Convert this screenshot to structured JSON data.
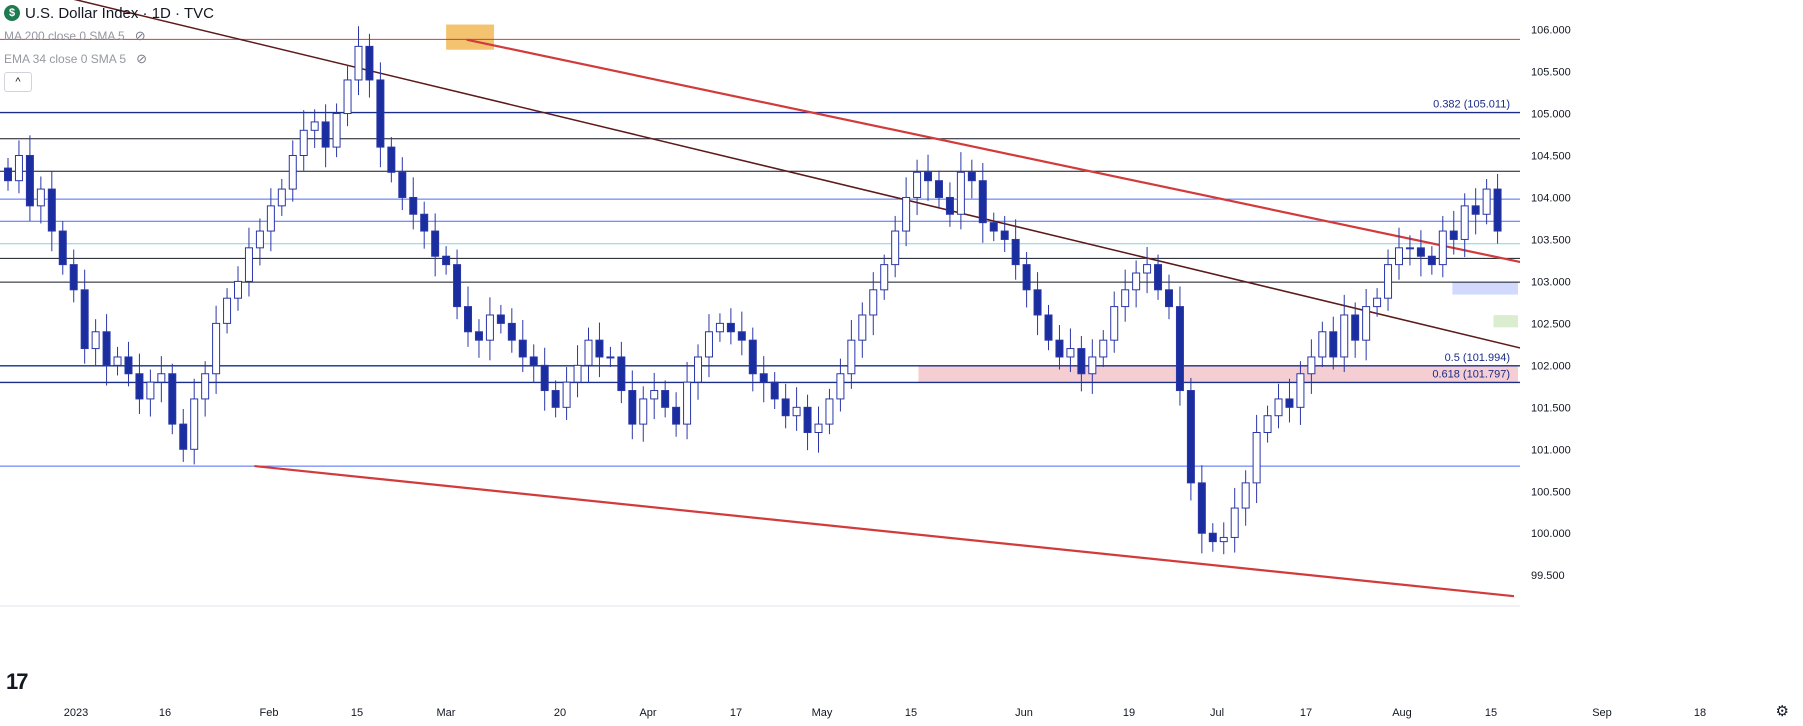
{
  "header": {
    "symbol_badge": "$",
    "title": "U.S. Dollar Index · 1D · TVC",
    "indicators": [
      {
        "label": "MA 200 close 0 SMA 5"
      },
      {
        "label": "EMA 34 close 0 SMA 5"
      }
    ],
    "collapse_glyph": "^"
  },
  "colors": {
    "up": "#ffffff",
    "down": "#1a2ea0",
    "wick": "#2a36a8",
    "red_line": "#d23b3b",
    "dark_line": "#5c1a1a",
    "fib": "#1a2d88",
    "axis_text": "#131722"
  },
  "chart_data": {
    "type": "candlestick",
    "title": "U.S. Dollar Index",
    "timeframe": "1D",
    "ylim": [
      99.3,
      106.15
    ],
    "y_ticks": [
      "106.000",
      "105.500",
      "105.000",
      "104.500",
      "104.000",
      "103.500",
      "103.000",
      "102.500",
      "102.000",
      "101.500",
      "101.000",
      "100.500",
      "100.000",
      "99.500"
    ],
    "x_ticks": [
      "2023",
      "16",
      "Feb",
      "15",
      "Mar",
      "20",
      "Apr",
      "17",
      "May",
      "15",
      "Jun",
      "19",
      "Jul",
      "17",
      "Aug",
      "15",
      "Sep",
      "18"
    ],
    "price_levels": [
      {
        "value": 105.883,
        "label": "105.883",
        "bg": "#d23b3b",
        "line": "#d23b3b"
      },
      {
        "value": 104.699,
        "label": "104.699",
        "bg": "#131722",
        "line": "#131722"
      },
      {
        "value": 104.312,
        "label": "104.312",
        "bg": "#131722",
        "line": "#131722"
      },
      {
        "value": 103.981,
        "label": "103.981",
        "bg": "#4a6cf7",
        "line": "#4a6cf7"
      },
      {
        "value": 103.716,
        "label": "103.716",
        "bg": "#4a6cf7",
        "line": "#4a6cf7"
      },
      {
        "value": 103.448,
        "label": "103.448",
        "bg": "#2aa6b8",
        "line": "#7fd3e0"
      },
      {
        "value": 103.274,
        "label": "103.274",
        "bg": "#131722",
        "line": "#131722"
      },
      {
        "value": 102.992,
        "label": "102.992",
        "bg": "#131722",
        "line": "#131722"
      },
      {
        "value": 102.843,
        "label": "102.843",
        "bg": "#4a6cf7",
        "line": "none"
      },
      {
        "value": 102.598,
        "label": "102.598",
        "bg": "#131722",
        "line": "none"
      },
      {
        "value": 102.453,
        "label": "102.453",
        "bg": "#131722",
        "line": "none"
      },
      {
        "value": 100.8,
        "label": "100.800",
        "bg": "#4a6cf7",
        "line": "#4a6cf7"
      }
    ],
    "fib_levels": [
      {
        "value": 105.011,
        "label": "0.382 (105.011)"
      },
      {
        "value": 101.994,
        "label": "0.5 (101.994)"
      },
      {
        "value": 101.797,
        "label": "0.618 (101.797)"
      }
    ],
    "zones": [
      {
        "from_day": 133,
        "to_day": 240,
        "low": 101.797,
        "high": 101.994,
        "color": "#f3c6cb"
      },
      {
        "from_day": 211,
        "to_day": 240,
        "low": 102.843,
        "high": 102.992,
        "color": "#c9d4fb"
      },
      {
        "from_day": 217,
        "to_day": 240,
        "low": 102.453,
        "high": 102.598,
        "color": "#d4ebc7"
      }
    ],
    "highlight_box": {
      "from_day": 64,
      "to_day": 71,
      "low": 105.76,
      "high": 106.06,
      "color": "#f0b44c"
    },
    "trendlines": [
      {
        "x1": 0,
        "y1": 106.55,
        "x2": 240,
        "y2": 101.92,
        "color": "dark"
      },
      {
        "x1": 67,
        "y1": 105.88,
        "x2": 240,
        "y2": 102.98,
        "color": "red"
      },
      {
        "x1": 36,
        "y1": 100.8,
        "x2": 220,
        "y2": 99.25,
        "color": "red"
      }
    ],
    "candles_dates": "2023-01-03 to 2023-08-31, daily",
    "closes": [
      104.2,
      104.5,
      103.9,
      104.1,
      103.6,
      103.2,
      102.9,
      102.2,
      102.4,
      102.0,
      102.1,
      101.9,
      101.6,
      101.8,
      101.9,
      101.3,
      101.0,
      101.6,
      101.9,
      102.5,
      102.8,
      103.0,
      103.4,
      103.6,
      103.9,
      104.1,
      104.5,
      104.8,
      104.9,
      104.6,
      105.0,
      105.4,
      105.8,
      105.4,
      104.6,
      104.3,
      104.0,
      103.8,
      103.6,
      103.3,
      103.2,
      102.7,
      102.4,
      102.3,
      102.6,
      102.5,
      102.3,
      102.1,
      102.0,
      101.7,
      101.5,
      101.8,
      102.0,
      102.3,
      102.1,
      102.1,
      101.7,
      101.3,
      101.6,
      101.7,
      101.5,
      101.3,
      101.8,
      102.1,
      102.4,
      102.5,
      102.4,
      102.3,
      101.9,
      101.8,
      101.6,
      101.4,
      101.5,
      101.2,
      101.3,
      101.6,
      101.9,
      102.3,
      102.6,
      102.9,
      103.2,
      103.6,
      104.0,
      104.3,
      104.2,
      104.0,
      103.8,
      104.3,
      104.2,
      103.7,
      103.6,
      103.5,
      103.2,
      102.9,
      102.6,
      102.3,
      102.1,
      102.2,
      101.9,
      102.1,
      102.3,
      102.7,
      102.9,
      103.1,
      103.2,
      102.9,
      102.7,
      101.7,
      100.6,
      100.0,
      99.9,
      99.95,
      100.3,
      100.6,
      101.2,
      101.4,
      101.6,
      101.5,
      101.9,
      102.1,
      102.4,
      102.1,
      102.6,
      102.3,
      102.7,
      102.8,
      103.2,
      103.4,
      103.4,
      103.3,
      103.2,
      103.6,
      103.5,
      103.9,
      103.8,
      104.1,
      103.6
    ]
  },
  "footer": {
    "tv_logo": "17",
    "settings_icon": "⚙"
  }
}
